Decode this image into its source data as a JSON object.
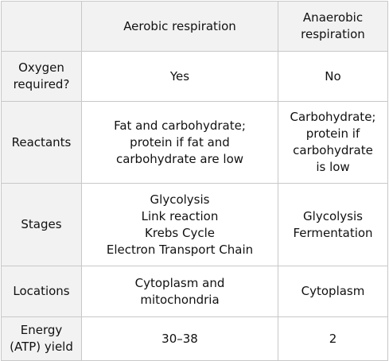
{
  "table": {
    "header": {
      "corner": "",
      "col1": "Aerobic respiration",
      "col2": "Anaerobic\nrespiration"
    },
    "rows": [
      {
        "label": "Oxygen\nrequired?",
        "aerobic": "Yes",
        "anaerobic": "No"
      },
      {
        "label": "Reactants",
        "aerobic": "Fat and carbohydrate;\nprotein if fat and\ncarbohydrate are low",
        "anaerobic": "Carbohydrate;\nprotein if\ncarbohydrate\nis low"
      },
      {
        "label": "Stages",
        "aerobic": "Glycolysis\nLink reaction\nKrebs Cycle\nElectron Transport Chain",
        "anaerobic": "Glycolysis\nFermentation"
      },
      {
        "label": "Locations",
        "aerobic": "Cytoplasm and\nmitochondria",
        "anaerobic": "Cytoplasm"
      },
      {
        "label": "Energy\n(ATP) yield",
        "aerobic": "30–38",
        "anaerobic": "2"
      }
    ]
  }
}
